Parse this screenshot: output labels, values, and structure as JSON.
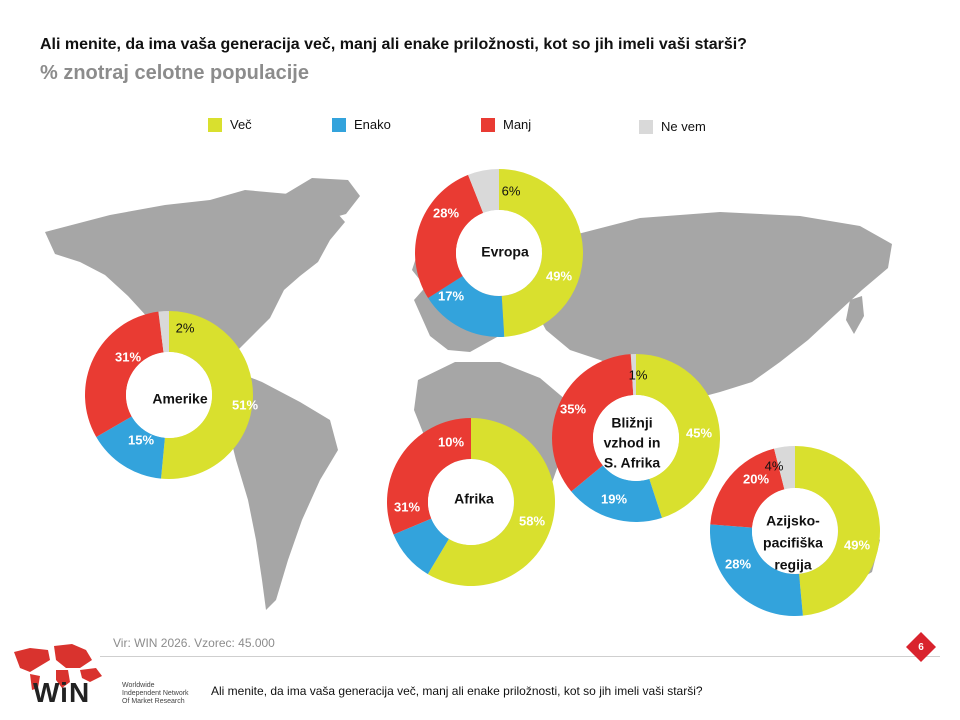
{
  "header": {
    "title": "Ali menite, da ima vaša generacija več, manj ali enake priložnosti, kot so jih imeli vaši starši?",
    "subtitle": "% znotraj celotne populacije"
  },
  "legend": [
    {
      "label": "Več",
      "color": "#d9e02e"
    },
    {
      "label": "Enako",
      "color": "#33a3dc"
    },
    {
      "label": "Manj",
      "color": "#e93b33"
    },
    {
      "label": "Ne vem",
      "color": "#d9d9d9"
    }
  ],
  "chart_data": {
    "type": "pie",
    "categories": [
      "Več",
      "Enako",
      "Manj",
      "Ne vem"
    ],
    "colors": [
      "#d9e02e",
      "#33a3dc",
      "#e93b33",
      "#d9d9d9"
    ],
    "charts": [
      {
        "region": "Evropa",
        "values": [
          49,
          17,
          28,
          6
        ],
        "labels": [
          "49%",
          "17%",
          "28%",
          "6%"
        ]
      },
      {
        "region": "Amerike",
        "values": [
          51,
          15,
          31,
          2
        ],
        "labels": [
          "51%",
          "15%",
          "31%",
          "2%"
        ]
      },
      {
        "region": "Afrika",
        "values": [
          58,
          10,
          31,
          0
        ],
        "labels": [
          "58%",
          "10%",
          "31%",
          ""
        ]
      },
      {
        "region": "Bližnji vzhod in S. Afrika",
        "values": [
          45,
          19,
          35,
          1
        ],
        "labels": [
          "45%",
          "19%",
          "35%",
          "1%"
        ]
      },
      {
        "region": "Azijsko-pacifiška regija",
        "values": [
          49,
          28,
          20,
          4
        ],
        "labels": [
          "49%",
          "28%",
          "20%",
          "4%"
        ]
      }
    ]
  },
  "footer": {
    "source": "Vir: WIN 2026.  Vzorec: 45.000",
    "question": "Ali menite, da ima vaša generacija več, manj ali enake priložnosti, kot so jih imeli vaši starši?",
    "page": "6",
    "logo_text": "WiN",
    "logo_sub": [
      "Worldwide",
      "Independent Network",
      "Of Market Research"
    ]
  }
}
